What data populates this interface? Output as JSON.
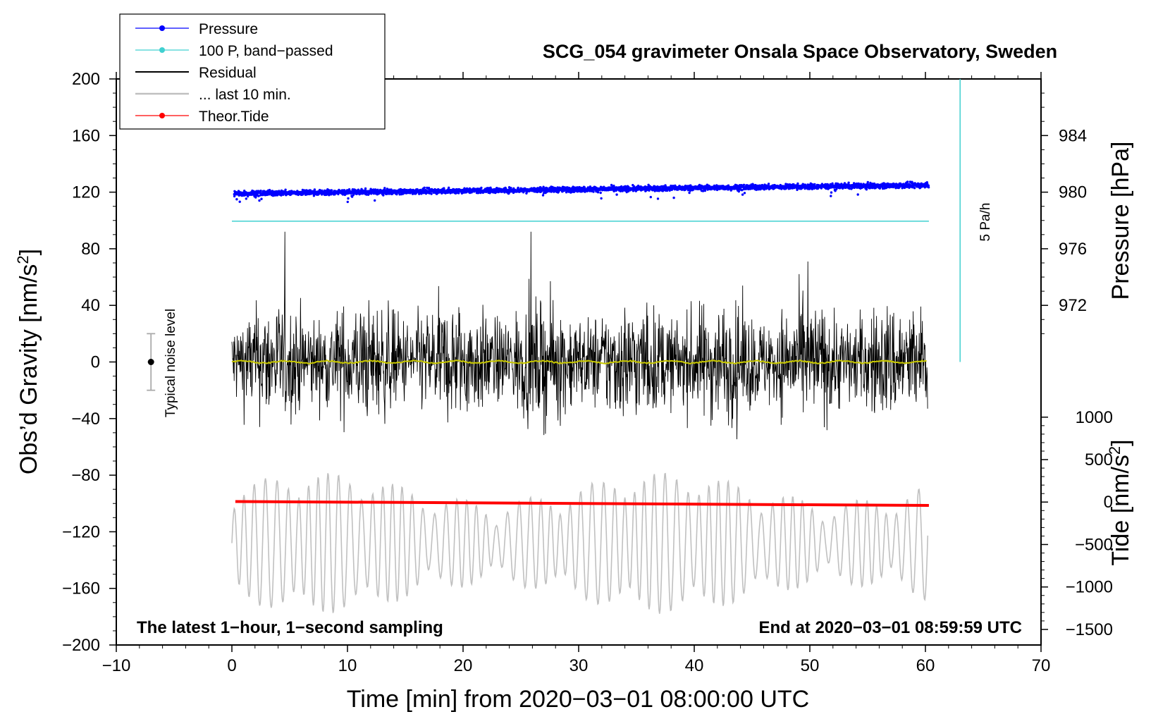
{
  "chart_data": {
    "type": "line",
    "title": "SCG_054 gravimeter Onsala Space Observatory, Sweden",
    "xlabel": "Time [min] from 2020−03−01 08:00:00 UTC",
    "ylabel_left_text": "Obs’d Gravity [nm/s",
    "ylabel_left_sup": "2",
    "ylabel_left_end": "]",
    "ylabel_right_pressure": "Pressure [hPa]",
    "ylabel_right_tide_text": "Tide [nm/s",
    "ylabel_right_tide_sup": "2",
    "ylabel_right_tide_end": "]",
    "xlim": [
      -10,
      70
    ],
    "ylim": [
      -200,
      200
    ],
    "x_ticks": [
      -10,
      0,
      10,
      20,
      30,
      40,
      50,
      60,
      70
    ],
    "x_tick_labels": [
      "−10",
      "0",
      "10",
      "20",
      "30",
      "40",
      "50",
      "60",
      "70"
    ],
    "y_ticks": [
      -200,
      -160,
      -120,
      -80,
      -40,
      0,
      40,
      80,
      120,
      160,
      200
    ],
    "y_tick_labels": [
      "−200",
      "−160",
      "−120",
      "−80",
      "−40",
      "0",
      "40",
      "80",
      "120",
      "160",
      "200"
    ],
    "pressure_axis": {
      "ticks": [
        972,
        976,
        980,
        984
      ],
      "tick_labels": [
        "972",
        "976",
        "980",
        "984"
      ],
      "ref_hpa": 980,
      "ref_gravity": 120,
      "nm_per_hpa": 10
    },
    "tide_axis": {
      "ticks": [
        -1500,
        -1000,
        -500,
        0,
        500,
        1000
      ],
      "tick_labels": [
        "−1500",
        "−1000",
        "−500",
        "0",
        "500",
        "1000"
      ],
      "ref_tide": 0,
      "ref_gravity": -99,
      "nm_per_tide_unit": 0.06
    },
    "series": [
      {
        "name": "Pressure",
        "color": "#0000ff",
        "kind": "dots",
        "x_range": [
          0.2,
          60.3
        ],
        "gravity_start": 119,
        "gravity_end": 125,
        "scatter": 1.3
      },
      {
        "name": "100 P, band−passed",
        "color": "#40d0d0",
        "kind": "line",
        "points": [
          [
            0,
            99.5
          ],
          [
            60.3,
            99.5
          ]
        ]
      },
      {
        "name": "Residual",
        "color": "#000000",
        "kind": "line",
        "x_range": [
          0,
          60.2
        ],
        "amplitude": 45
      },
      {
        "name": "... last 10 min.",
        "color": "#c0c0c0",
        "kind": "line",
        "x_range": [
          0,
          60.2
        ],
        "center": -128,
        "amplitude": 40
      },
      {
        "name": "Theor.Tide",
        "color": "#ff0000",
        "kind": "line",
        "points": [
          [
            0.3,
            -98.6
          ],
          [
            60.3,
            -101.4
          ]
        ]
      },
      {
        "name": "smoothed residual",
        "color": "#c8c800",
        "kind": "line",
        "in_legend": false,
        "x_range": [
          0,
          60.2
        ],
        "center": 0
      }
    ],
    "rate_bar": {
      "label": "5 Pa/h",
      "color": "#40d0d0",
      "x": 63,
      "y_from": 0,
      "y_to": 200
    },
    "noise_bar": {
      "label": "Typical noise level",
      "x": -7,
      "center": 0,
      "half_range": 20
    },
    "left_note": "The latest 1−hour, 1−second sampling",
    "right_note": "End at 2020−03−01 08:59:59 UTC",
    "legend_position": "top-left"
  }
}
